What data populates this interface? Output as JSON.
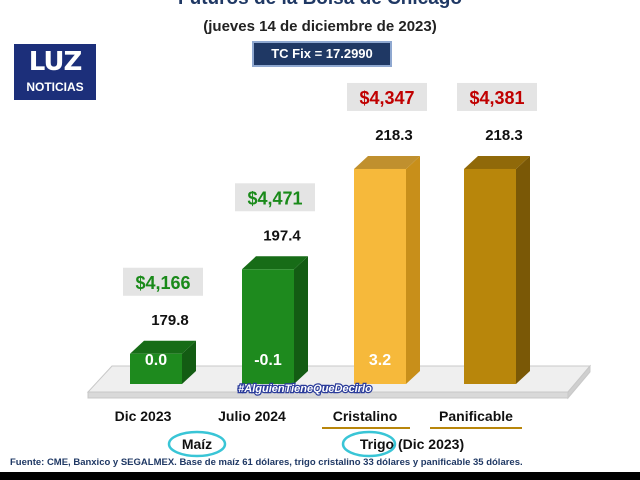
{
  "header": {
    "title": "Futuros de la Bolsa de Chicago",
    "subtitle": "(jueves 14 de diciembre de 2023)",
    "tc_fix": "TC Fix = 17.2990"
  },
  "logo": {
    "text": "NOTICIAS",
    "mark": "LUZ"
  },
  "watermark": "#AlguienTieneQueDecirlo",
  "footer": {
    "source": "Fuente: CME, Banxico y SEGALMEX. Base de maíz 61 dólares, trigo cristalino 33 dólares y panificable 35 dólares."
  },
  "groups": [
    {
      "label": "Maíz",
      "circled": true
    },
    {
      "label": "Trigo",
      "suffix": " (Dic 2023)",
      "circled": true
    }
  ],
  "colors": {
    "green": "#1e8a1e",
    "green_dark": "#135c13",
    "yellow": "#f6b93b",
    "yellow_dark": "#c88f1a",
    "gold": "#b8860b",
    "gold_dark": "#7a5806",
    "price_green": "#1a8a1a",
    "price_red": "#c00000",
    "tag_bg": "#e4e4e4",
    "circle": "#39c5d6"
  },
  "chart_data": {
    "type": "bar",
    "title": "Futuros de la Bolsa de Chicago",
    "subtitle": "(jueves 14 de diciembre de 2023)",
    "categories": [
      "Dic 2023",
      "Julio 2024",
      "Cristalino",
      "Panificable"
    ],
    "series": [
      {
        "values": [
          179.8,
          197.4,
          218.3,
          218.3
        ]
      }
    ],
    "prices": [
      "$4,166",
      "$4,471",
      "$4,347",
      "$4,381"
    ],
    "variation_labels": [
      "0.0",
      "-0.1",
      "3.2",
      ""
    ],
    "bar_colors": [
      "green",
      "green",
      "yellow",
      "gold"
    ],
    "price_colors": [
      "price_green",
      "price_green",
      "price_red",
      "price_red"
    ],
    "ylim": [
      0,
      240
    ],
    "grid": false,
    "legend": "none"
  }
}
